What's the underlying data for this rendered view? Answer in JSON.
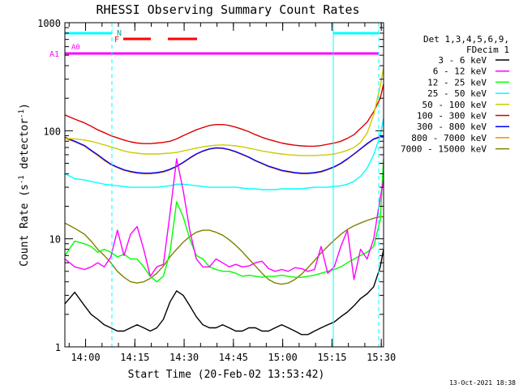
{
  "chart_data": {
    "type": "line",
    "title": "RHESSI Observing Summary Count Rates",
    "xlabel": "Start Time (20-Feb-02 13:53:42)",
    "ylabel_main": "Count Rate (s",
    "ylabel_sup1": "-1",
    "ylabel_mid": " detector",
    "ylabel_sup2": "-1",
    "ylabel_end": ")",
    "yscale": "log",
    "ylim": [
      1,
      1000
    ],
    "xlim_minutes": [
      0,
      97
    ],
    "y_ticks": [
      {
        "value": 1,
        "label": "1"
      },
      {
        "value": 10,
        "label": "10"
      },
      {
        "value": 100,
        "label": "100"
      },
      {
        "value": 1000,
        "label": "1000"
      }
    ],
    "x_ticks": [
      {
        "value": 6.3,
        "label": "14:00"
      },
      {
        "value": 21.3,
        "label": "14:15"
      },
      {
        "value": 36.3,
        "label": "14:30"
      },
      {
        "value": 51.3,
        "label": "14:45"
      },
      {
        "value": 66.3,
        "label": "15:00"
      },
      {
        "value": 81.3,
        "label": "15:15"
      },
      {
        "value": 96.3,
        "label": "15:30"
      }
    ],
    "legend_header": [
      "Det 1,3,4,5,6,9,",
      "FDecim 1"
    ],
    "series": [
      {
        "name": "3 - 6 keV",
        "color": "#000000",
        "x": [
          0,
          3,
          6,
          8,
          10,
          12,
          14,
          16,
          18,
          20,
          22,
          24,
          26,
          28,
          30,
          32,
          34,
          36,
          38,
          40,
          42,
          44,
          46,
          48,
          50,
          52,
          54,
          56,
          58,
          60,
          62,
          64,
          66,
          68,
          70,
          72,
          74,
          76,
          78,
          80,
          82,
          84,
          86,
          88,
          90,
          92,
          94,
          96,
          97
        ],
        "y": [
          2.5,
          3.2,
          2.4,
          2.0,
          1.8,
          1.6,
          1.5,
          1.4,
          1.4,
          1.5,
          1.6,
          1.5,
          1.4,
          1.5,
          1.8,
          2.6,
          3.3,
          3.0,
          2.4,
          1.9,
          1.6,
          1.5,
          1.5,
          1.6,
          1.5,
          1.4,
          1.4,
          1.5,
          1.5,
          1.4,
          1.4,
          1.5,
          1.6,
          1.5,
          1.4,
          1.3,
          1.3,
          1.4,
          1.5,
          1.6,
          1.7,
          1.9,
          2.1,
          2.4,
          2.8,
          3.1,
          3.6,
          5.5,
          8
        ]
      },
      {
        "name": "6 - 12 keV",
        "color": "#ff00ff",
        "x": [
          0,
          3,
          6,
          8,
          10,
          12,
          14,
          16,
          18,
          20,
          22,
          24,
          26,
          28,
          30,
          32,
          34,
          36,
          38,
          40,
          42,
          44,
          46,
          48,
          50,
          52,
          54,
          56,
          58,
          60,
          62,
          64,
          66,
          68,
          70,
          72,
          74,
          76,
          78,
          80,
          82,
          84,
          86,
          88,
          90,
          92,
          94,
          96,
          97
        ],
        "y": [
          6.5,
          5.5,
          5.2,
          5.5,
          6.0,
          5.5,
          6.8,
          12,
          7,
          11,
          13,
          8,
          4.5,
          5.5,
          5.8,
          17,
          55,
          28,
          12,
          6.5,
          5.5,
          5.5,
          6.5,
          6,
          5.5,
          5.8,
          5.5,
          5.6,
          6,
          6.2,
          5.3,
          5.0,
          5.2,
          5.0,
          5.4,
          5.3,
          5.0,
          5.2,
          8.5,
          4.8,
          5.5,
          8.5,
          12,
          4.2,
          8,
          6.5,
          10,
          24,
          35
        ]
      },
      {
        "name": "12 - 25 keV",
        "color": "#00ff00",
        "x": [
          0,
          3,
          6,
          8,
          10,
          12,
          14,
          16,
          18,
          20,
          22,
          24,
          26,
          28,
          30,
          32,
          34,
          36,
          38,
          40,
          42,
          44,
          46,
          48,
          50,
          52,
          54,
          56,
          58,
          60,
          62,
          64,
          66,
          68,
          70,
          72,
          74,
          76,
          78,
          80,
          82,
          84,
          86,
          88,
          90,
          92,
          94,
          96,
          97
        ],
        "y": [
          7,
          9.5,
          9.0,
          8.5,
          7.5,
          8.0,
          7.5,
          6.8,
          7.2,
          6.5,
          6.5,
          5.5,
          4.5,
          4.0,
          4.5,
          7.5,
          22,
          16,
          10,
          7,
          6.5,
          5.5,
          5.2,
          5.0,
          5.0,
          4.8,
          4.5,
          4.6,
          4.5,
          4.4,
          4.5,
          4.5,
          4.6,
          4.5,
          4.4,
          4.4,
          4.5,
          4.6,
          4.8,
          5.0,
          5.2,
          5.5,
          6.0,
          6.5,
          7.0,
          7.5,
          8.5,
          15,
          55
        ]
      },
      {
        "name": "25 - 50 keV",
        "color": "#00ffff",
        "x": [
          0,
          3,
          6,
          8,
          10,
          12,
          14,
          16,
          18,
          20,
          22,
          24,
          26,
          28,
          30,
          32,
          34,
          36,
          38,
          40,
          42,
          44,
          46,
          48,
          50,
          52,
          54,
          56,
          58,
          60,
          62,
          64,
          66,
          68,
          70,
          72,
          74,
          76,
          78,
          80,
          82,
          84,
          86,
          88,
          90,
          92,
          94,
          96,
          97
        ],
        "y": [
          40,
          36,
          35,
          34,
          33,
          32,
          31.5,
          31,
          30.5,
          30,
          30,
          30,
          30,
          30,
          30.5,
          31,
          32,
          32,
          31.5,
          31,
          30.5,
          30,
          30,
          30,
          30,
          30,
          29.5,
          29,
          29,
          28.5,
          28.5,
          28.5,
          29,
          29,
          29,
          29,
          29.5,
          30,
          30,
          30,
          30.5,
          31,
          32,
          34,
          38,
          45,
          60,
          90,
          130
        ]
      },
      {
        "name": "50 - 100 keV",
        "color": "#cccc00",
        "x": [
          0,
          3,
          6,
          8,
          10,
          12,
          14,
          16,
          18,
          20,
          22,
          24,
          26,
          28,
          30,
          32,
          34,
          36,
          38,
          40,
          42,
          44,
          46,
          48,
          50,
          52,
          54,
          56,
          58,
          60,
          62,
          64,
          66,
          68,
          70,
          72,
          74,
          76,
          78,
          80,
          82,
          84,
          86,
          88,
          90,
          92,
          94,
          96,
          97
        ],
        "y": [
          85,
          84,
          82,
          80,
          77,
          74,
          71,
          68,
          65,
          63,
          62,
          61,
          61,
          61,
          61.5,
          62,
          63,
          65,
          67,
          69,
          71,
          72.5,
          73.5,
          74,
          73.5,
          72.5,
          71,
          69,
          67,
          65,
          63.5,
          62,
          61,
          60,
          59.5,
          59,
          59,
          59,
          59.5,
          60,
          61,
          63,
          66,
          70,
          78,
          95,
          140,
          260,
          380
        ]
      },
      {
        "name": "100 - 300 keV",
        "color": "#dd0000",
        "x": [
          0,
          3,
          6,
          8,
          10,
          12,
          14,
          16,
          18,
          20,
          22,
          24,
          26,
          28,
          30,
          32,
          34,
          36,
          38,
          40,
          42,
          44,
          46,
          48,
          50,
          52,
          54,
          56,
          58,
          60,
          62,
          64,
          66,
          68,
          70,
          72,
          74,
          76,
          78,
          80,
          82,
          84,
          86,
          88,
          90,
          92,
          94,
          96,
          97
        ],
        "y": [
          140,
          128,
          118,
          110,
          102,
          96,
          90,
          86,
          82,
          79,
          77,
          76,
          76,
          77,
          78,
          80,
          84,
          90,
          96,
          102,
          107,
          112,
          114,
          114,
          112,
          108,
          103,
          98,
          92,
          87,
          83,
          80,
          77,
          75,
          73.5,
          72.5,
          72,
          72,
          73,
          75,
          77,
          80,
          85,
          92,
          105,
          120,
          150,
          200,
          270
        ]
      },
      {
        "name": "300 - 800 keV",
        "color": "#0000ff",
        "x": [
          0,
          3,
          6,
          8,
          10,
          12,
          14,
          16,
          18,
          20,
          22,
          24,
          26,
          28,
          30,
          32,
          34,
          36,
          38,
          40,
          42,
          44,
          46,
          48,
          50,
          52,
          54,
          56,
          58,
          60,
          62,
          64,
          66,
          68,
          70,
          72,
          74,
          76,
          78,
          80,
          82,
          84,
          86,
          88,
          90,
          92,
          94,
          96,
          97
        ],
        "y": [
          87,
          80,
          73,
          66,
          60,
          54,
          49,
          46,
          43.5,
          42,
          41,
          40.5,
          40.5,
          41,
          42,
          44,
          47,
          51,
          56,
          61,
          65,
          68,
          69.5,
          69,
          67,
          64,
          60.5,
          57,
          53,
          50,
          47,
          45,
          43,
          42,
          41,
          40.5,
          40.5,
          41,
          42,
          44,
          46.5,
          50,
          55,
          61,
          68,
          76,
          84,
          88,
          88
        ]
      },
      {
        "name": "800 - 7000 keV",
        "color": "#ff8800",
        "x": [
          0,
          3,
          6,
          8,
          10,
          12,
          14,
          16,
          18,
          20,
          22,
          24,
          26,
          28,
          30,
          32,
          34,
          36,
          38,
          40,
          42,
          44,
          46,
          48,
          50,
          52,
          54,
          56,
          58,
          60,
          62,
          64,
          66,
          68,
          70,
          72,
          74,
          76,
          78,
          80,
          82,
          84,
          86,
          88,
          90,
          92,
          94,
          96,
          97
        ],
        "y": [
          85,
          79,
          72,
          65,
          59,
          53,
          48.5,
          45.5,
          43,
          41.5,
          40.5,
          40,
          40,
          40.5,
          41.5,
          43.5,
          46.5,
          50.5,
          55.5,
          60.5,
          64.5,
          67.5,
          69,
          68.5,
          66.5,
          63.5,
          60,
          56.5,
          52.5,
          49.5,
          46.5,
          44.5,
          42.5,
          41.5,
          40.5,
          40,
          40,
          40.5,
          41.5,
          43.5,
          46,
          49.5,
          54.5,
          60.5,
          67.5,
          75,
          83,
          87,
          87
        ]
      },
      {
        "name": "7000 - 15000 keV",
        "color": "#808000",
        "x": [
          0,
          3,
          6,
          8,
          10,
          12,
          14,
          16,
          18,
          20,
          22,
          24,
          26,
          28,
          30,
          32,
          34,
          36,
          38,
          40,
          42,
          44,
          46,
          48,
          50,
          52,
          54,
          56,
          58,
          60,
          62,
          64,
          66,
          68,
          70,
          72,
          74,
          76,
          78,
          80,
          82,
          84,
          86,
          88,
          90,
          92,
          94,
          96,
          97
        ],
        "y": [
          14,
          12.5,
          11,
          9.5,
          8.0,
          7.0,
          6.0,
          5.0,
          4.4,
          4.0,
          3.9,
          4.0,
          4.3,
          4.8,
          5.6,
          6.8,
          8.0,
          9.3,
          10.5,
          11.5,
          12.0,
          12.0,
          11.5,
          10.8,
          9.8,
          8.7,
          7.6,
          6.5,
          5.6,
          4.8,
          4.2,
          3.9,
          3.8,
          3.9,
          4.2,
          4.7,
          5.4,
          6.3,
          7.4,
          8.5,
          9.7,
          11.0,
          12.2,
          13.2,
          14.0,
          14.8,
          15.5,
          16,
          16
        ]
      }
    ],
    "markers": {
      "A1_label": "A1",
      "A0_label": "A0",
      "N_label": "N",
      "F_label": "F"
    },
    "colors": {
      "axes": "#000000",
      "attenuator": "#ff00ff",
      "night_segments": "#00ffff",
      "saa_flag": "#ff0000"
    },
    "footer_date": "13-Oct-2021 18:38"
  }
}
